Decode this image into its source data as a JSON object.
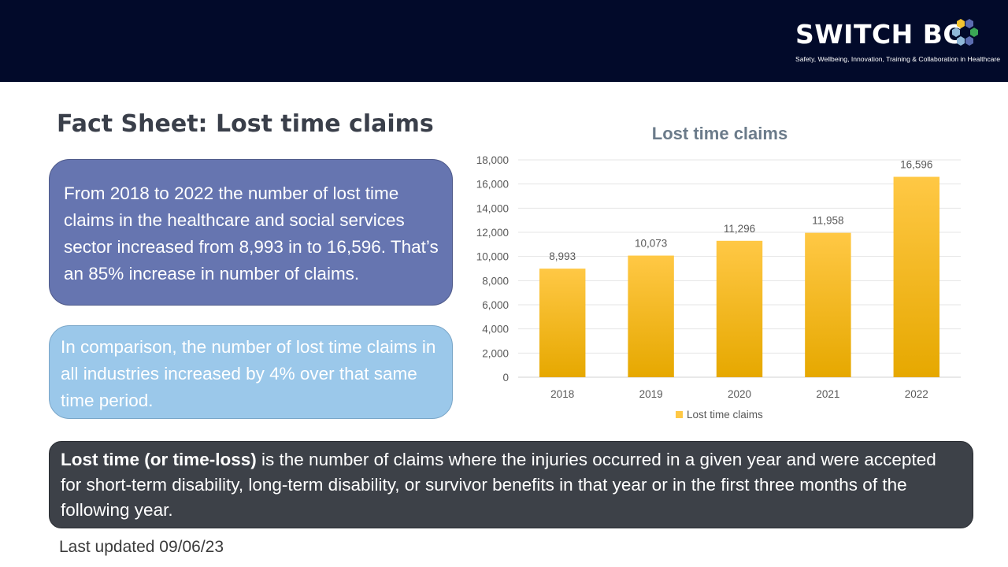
{
  "header": {
    "logo_text": "SWITCH BC",
    "tagline": "Safety, Wellbeing, Innovation, Training & Collaboration in Healthcare"
  },
  "title": "Fact Sheet: Lost time claims",
  "summary_box": {
    "text": "From 2018 to 2022 the number of lost time claims in the healthcare and social services sector increased from 8,993 in to 16,596. That’s an 85% increase in number of claims."
  },
  "comparison_box": {
    "text": "In comparison, the number of lost time claims in all industries increased by 4% over that same time period."
  },
  "definition_box": {
    "term": "Lost time (or time-loss)",
    "text": " is the number of claims where the injuries occurred in a given year and were accepted for short-term disability, long-term disability, or survivor benefits in that year or in the first three months of the following year."
  },
  "footer": {
    "updated": "Last updated 09/06/23"
  },
  "chart_data": {
    "type": "bar",
    "title": "Lost time claims",
    "categories": [
      "2018",
      "2019",
      "2020",
      "2021",
      "2022"
    ],
    "series": [
      {
        "name": "Lost time claims",
        "values": [
          8993,
          10073,
          11296,
          11958,
          16596
        ]
      }
    ],
    "data_labels": [
      "8,993",
      "10,073",
      "11,296",
      "11,958",
      "16,596"
    ],
    "ylim": [
      0,
      18000
    ],
    "yticks": [
      0,
      2000,
      4000,
      6000,
      8000,
      10000,
      12000,
      14000,
      16000,
      18000
    ],
    "ytick_labels": [
      "0",
      "2,000",
      "4,000",
      "6,000",
      "8,000",
      "10,000",
      "12,000",
      "14,000",
      "16,000",
      "18,000"
    ],
    "legend_position": "bottom",
    "grid": true,
    "bar_color_top": "#ffc845",
    "bar_color_bottom": "#e6a800",
    "title_color": "#6b7b8a"
  },
  "colors": {
    "header_bg": "#020a2a",
    "purple_box": "#6675b0",
    "blue_box": "#9bc8ea",
    "dark_box": "#3d4148"
  }
}
